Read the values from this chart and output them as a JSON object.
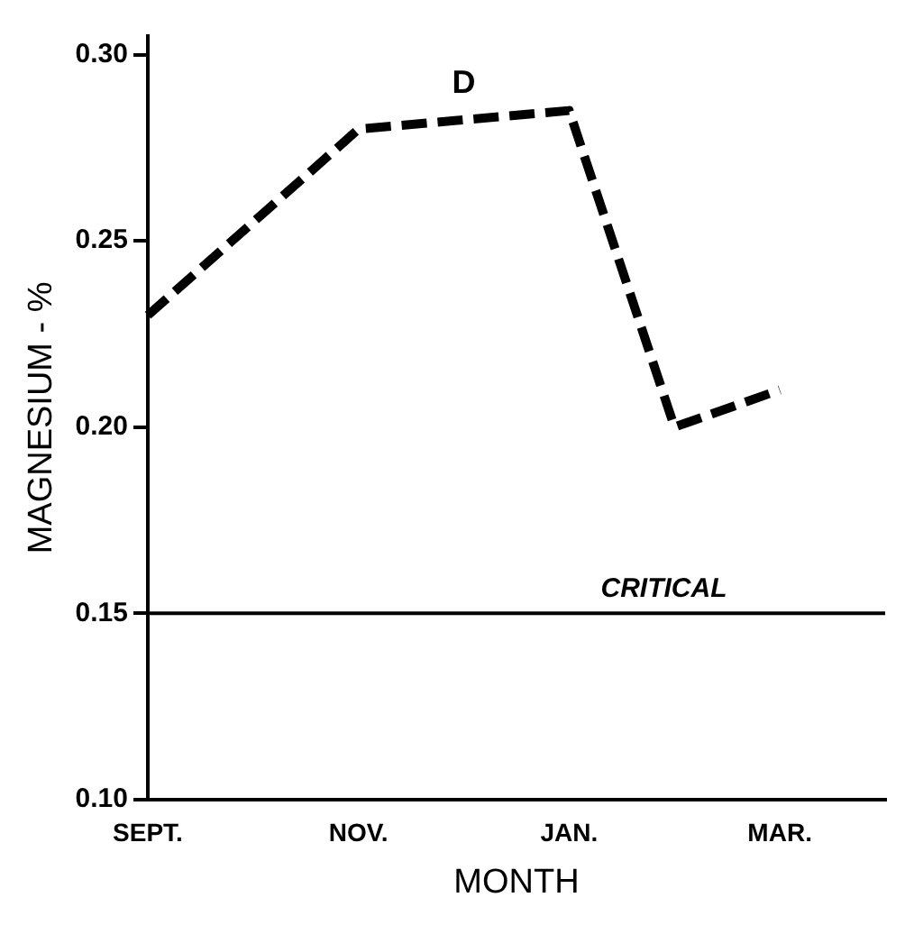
{
  "chart_data": {
    "type": "line",
    "xlabel": "MONTH",
    "ylabel": "MAGNESIUM - %",
    "categories": [
      "SEPT.",
      null,
      "NOV.",
      null,
      "JAN.",
      null,
      "MAR.",
      null
    ],
    "series": [
      {
        "name": "D",
        "color": "#000000",
        "values": [
          0.23,
          null,
          0.28,
          null,
          0.285,
          0.2,
          0.21,
          null
        ]
      }
    ],
    "ylim": [
      0.1,
      0.305
    ],
    "yticks": [
      {
        "value": 0.1,
        "label": "0.10"
      },
      {
        "value": 0.15,
        "label": "0.15"
      },
      {
        "value": 0.2,
        "label": "0.20"
      },
      {
        "value": 0.25,
        "label": "0.25"
      },
      {
        "value": 0.3,
        "label": "0.30"
      }
    ],
    "ref_lines": [
      {
        "axis": "y",
        "value": 0.15,
        "label": "CRITICAL",
        "color": "#000000"
      }
    ],
    "grid": false,
    "legend": false,
    "marker": "none",
    "line_style": "dashed"
  }
}
